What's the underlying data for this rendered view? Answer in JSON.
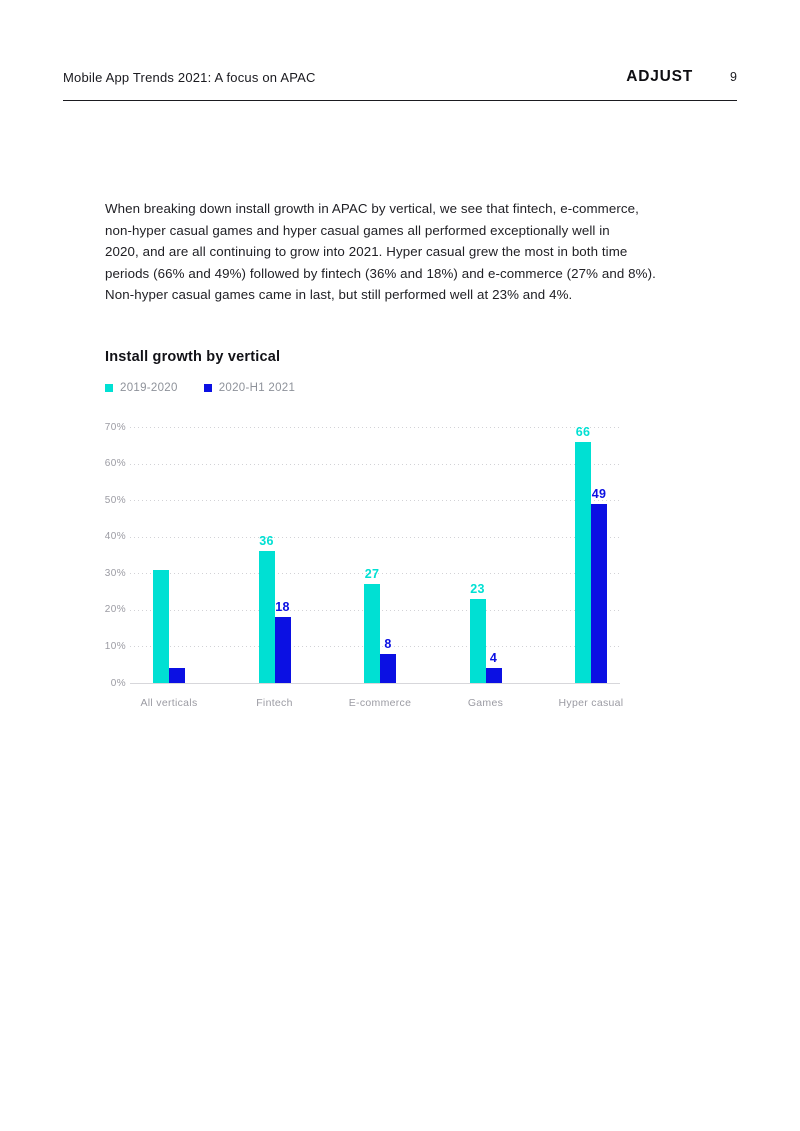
{
  "header": {
    "title": "Mobile App Trends 2021: A focus on APAC",
    "brand": "ADJUST",
    "page_number": "9"
  },
  "body": {
    "paragraph_lines": [
      "When breaking down install growth in APAC by vertical, we see that fintech, e-commerce,",
      "non-hyper casual games and hyper casual games all performed exceptionally well in",
      "2020, and are all continuing to grow into 2021. Hyper casual grew the most in both time",
      "periods (66% and 49%) followed by fintech (36% and 18%) and e-commerce (27% and 8%).",
      "Non-hyper casual games came in last, but still performed well at 23% and 4%."
    ]
  },
  "chart_data": {
    "type": "bar",
    "title": "Install growth by vertical",
    "categories": [
      "All verticals",
      "Fintech",
      "E-commerce",
      "Games",
      "Hyper casual"
    ],
    "series": [
      {
        "name": "2019-2020",
        "color": "#00E0D3",
        "values": [
          31,
          36,
          27,
          23,
          66
        ],
        "data_labels": [
          "",
          "36",
          "27",
          "23",
          "66"
        ]
      },
      {
        "name": "2020-H1 2021",
        "color": "#0B10E3",
        "values": [
          4,
          18,
          8,
          4,
          49
        ],
        "data_labels": [
          "",
          "18",
          "8",
          "4",
          "49"
        ]
      }
    ],
    "ylim": [
      0,
      70
    ],
    "yticks": [
      "0%",
      "10%",
      "20%",
      "30%",
      "40%",
      "50%",
      "60%",
      "70%"
    ],
    "grid": "horizontal-dotted",
    "legend_position": "top-left"
  }
}
